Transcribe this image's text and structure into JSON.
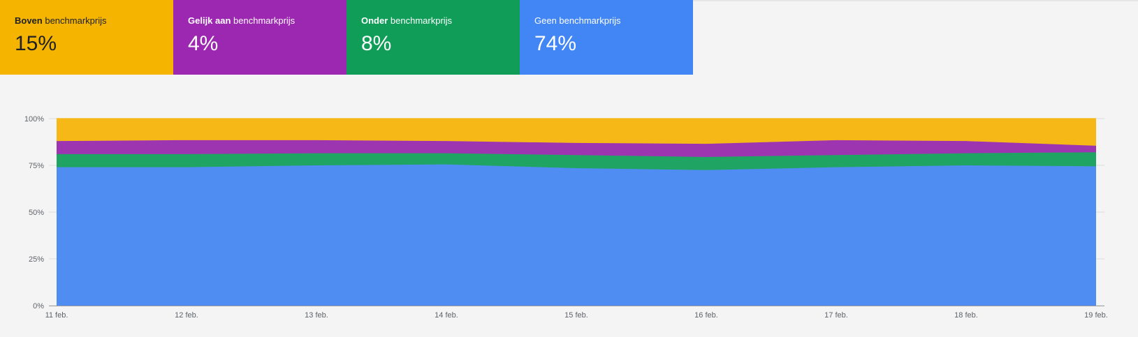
{
  "tiles": [
    {
      "bold": "Boven",
      "rest": " benchmarkprijs",
      "value": "15%",
      "color": "#f4b400"
    },
    {
      "bold": "Gelijk aan",
      "rest": " benchmarkprijs",
      "value": "4%",
      "color": "#9c27b0"
    },
    {
      "bold": "Onder",
      "rest": " benchmarkprijs",
      "value": "8%",
      "color": "#0f9d58"
    },
    {
      "bold": "",
      "rest": "Geen benchmarkprijs",
      "value": "74%",
      "color": "#4285f4"
    }
  ],
  "chart_data": {
    "type": "area",
    "stacked": true,
    "x": [
      "11 feb.",
      "12 feb.",
      "13 feb.",
      "14 feb.",
      "15 feb.",
      "16 feb.",
      "17 feb.",
      "18 feb.",
      "19 feb."
    ],
    "yticks": [
      "0%",
      "25%",
      "50%",
      "75%",
      "100%"
    ],
    "ylim": [
      0,
      100
    ],
    "grid": true,
    "series": [
      {
        "name": "Geen benchmarkprijs",
        "color": "#4f8df2",
        "values": [
          74,
          74,
          75,
          75.5,
          73.5,
          72.5,
          74,
          75,
          74.5
        ]
      },
      {
        "name": "Onder benchmarkprijs",
        "color": "#1fa463",
        "values": [
          7,
          7,
          6.5,
          6,
          7,
          7,
          6.5,
          6.5,
          7.5
        ]
      },
      {
        "name": "Gelijk aan benchmarkprijs",
        "color": "#9e35b0",
        "values": [
          7,
          7.5,
          7,
          6.5,
          6.5,
          7,
          8,
          6.5,
          3.5
        ]
      },
      {
        "name": "Boven benchmarkprijs",
        "color": "#f6b817",
        "values": [
          12,
          11.5,
          11.5,
          12,
          13,
          13.5,
          11.5,
          12,
          14.5
        ]
      }
    ]
  }
}
